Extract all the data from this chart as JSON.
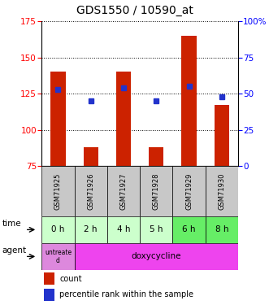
{
  "title": "GDS1550 / 10590_at",
  "samples": [
    "GSM71925",
    "GSM71926",
    "GSM71927",
    "GSM71928",
    "GSM71929",
    "GSM71930"
  ],
  "times": [
    "0 h",
    "2 h",
    "4 h",
    "5 h",
    "6 h",
    "8 h"
  ],
  "agent_first": "untreate\nd",
  "agent_rest": "doxycycline",
  "bar_heights": [
    140,
    88,
    140,
    88,
    165,
    117
  ],
  "blue_y": [
    128,
    120,
    129,
    120,
    130,
    123
  ],
  "ylim_left": [
    75,
    175
  ],
  "ylim_right": [
    0,
    100
  ],
  "yticks_left": [
    75,
    100,
    125,
    150,
    175
  ],
  "yticks_right": [
    0,
    25,
    50,
    75,
    100
  ],
  "bar_color": "#cc2200",
  "blue_color": "#2233cc",
  "sample_bg": "#c8c8c8",
  "time_bg_light": "#ccffcc",
  "time_bg_dark": "#66ee66",
  "agent_first_bg": "#dd88dd",
  "agent_rest_bg": "#ee44ee",
  "bar_width": 0.45,
  "title_fontsize": 10,
  "tick_fontsize": 7.5,
  "row_fontsize": 7.5,
  "legend_fontsize": 7
}
